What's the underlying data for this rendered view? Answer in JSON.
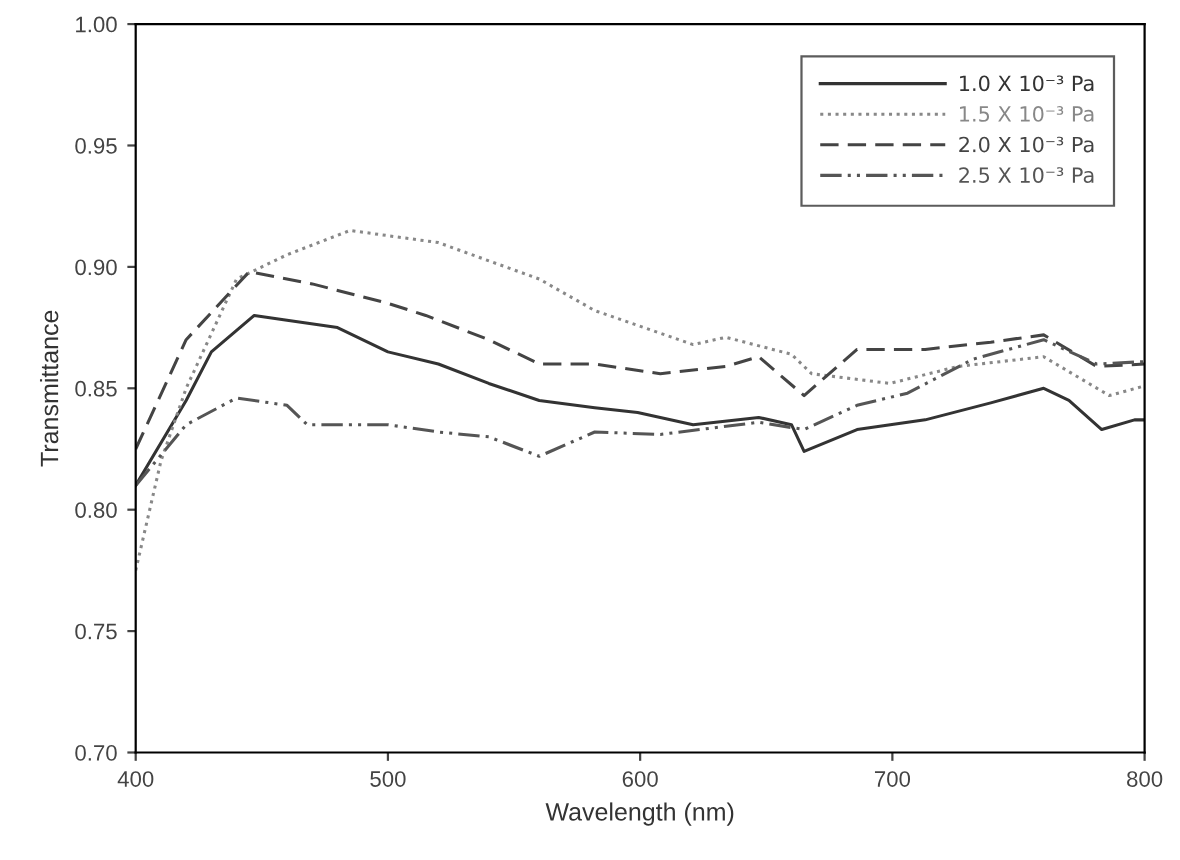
{
  "chart_data": {
    "type": "line",
    "xlabel": "Wavelength (nm)",
    "ylabel": "Transmittance",
    "xlim": [
      400,
      800
    ],
    "xticks": [
      400,
      500,
      600,
      700,
      800
    ],
    "ylim": [
      0.7,
      1.0
    ],
    "yticks": [
      {
        "value": 0.7,
        "label": "0.70"
      },
      {
        "value": 0.75,
        "label": "0.75"
      },
      {
        "value": 0.8,
        "label": "0.80"
      },
      {
        "value": 0.85,
        "label": "0.85"
      },
      {
        "value": 0.9,
        "label": "0.90"
      },
      {
        "value": 0.95,
        "label": "0.95"
      },
      {
        "value": 1.0,
        "label": "1.00"
      }
    ],
    "legend": "top right",
    "grid": false,
    "marker": "none",
    "series": [
      {
        "name": "1.0 X 10⁻³ Pa",
        "color": "#333333",
        "line_style": "solid",
        "x": [
          400,
          420,
          430,
          447,
          460,
          480,
          500,
          520,
          540,
          560,
          582,
          599,
          621,
          647,
          660,
          665,
          686,
          713,
          739,
          760,
          770,
          783,
          796,
          800
        ],
        "values": [
          0.81,
          0.845,
          0.865,
          0.88,
          0.878,
          0.875,
          0.865,
          0.86,
          0.852,
          0.845,
          0.842,
          0.84,
          0.835,
          0.838,
          0.835,
          0.824,
          0.833,
          0.837,
          0.844,
          0.85,
          0.845,
          0.833,
          0.837,
          0.837
        ]
      },
      {
        "name": "1.5 X 10⁻³ Pa",
        "color": "#888888",
        "line_style": "dotted",
        "x": [
          400,
          410,
          420,
          440,
          460,
          485,
          520,
          560,
          582,
          621,
          634,
          660,
          668,
          699,
          726,
          760,
          786,
          800
        ],
        "values": [
          0.775,
          0.82,
          0.85,
          0.895,
          0.905,
          0.915,
          0.91,
          0.895,
          0.882,
          0.868,
          0.871,
          0.864,
          0.856,
          0.852,
          0.859,
          0.863,
          0.847,
          0.851
        ]
      },
      {
        "name": "2.0 X 10⁻³ Pa",
        "color": "#444444",
        "line_style": "dashed",
        "x": [
          400,
          420,
          445,
          470,
          500,
          515,
          540,
          560,
          582,
          608,
          634,
          647,
          665,
          686,
          713,
          739,
          760,
          781,
          800
        ],
        "values": [
          0.825,
          0.87,
          0.898,
          0.893,
          0.885,
          0.88,
          0.87,
          0.86,
          0.86,
          0.856,
          0.859,
          0.863,
          0.847,
          0.866,
          0.866,
          0.869,
          0.872,
          0.859,
          0.86
        ]
      },
      {
        "name": "2.5 X 10⁻³ Pa",
        "color": "#555555",
        "line_style": "dashdot",
        "x": [
          400,
          420,
          440,
          460,
          468,
          500,
          520,
          540,
          560,
          582,
          608,
          647,
          665,
          686,
          706,
          732,
          760,
          781,
          800
        ],
        "values": [
          0.81,
          0.835,
          0.846,
          0.843,
          0.835,
          0.835,
          0.832,
          0.83,
          0.822,
          0.832,
          0.831,
          0.836,
          0.833,
          0.843,
          0.848,
          0.862,
          0.87,
          0.86,
          0.861
        ]
      }
    ]
  }
}
